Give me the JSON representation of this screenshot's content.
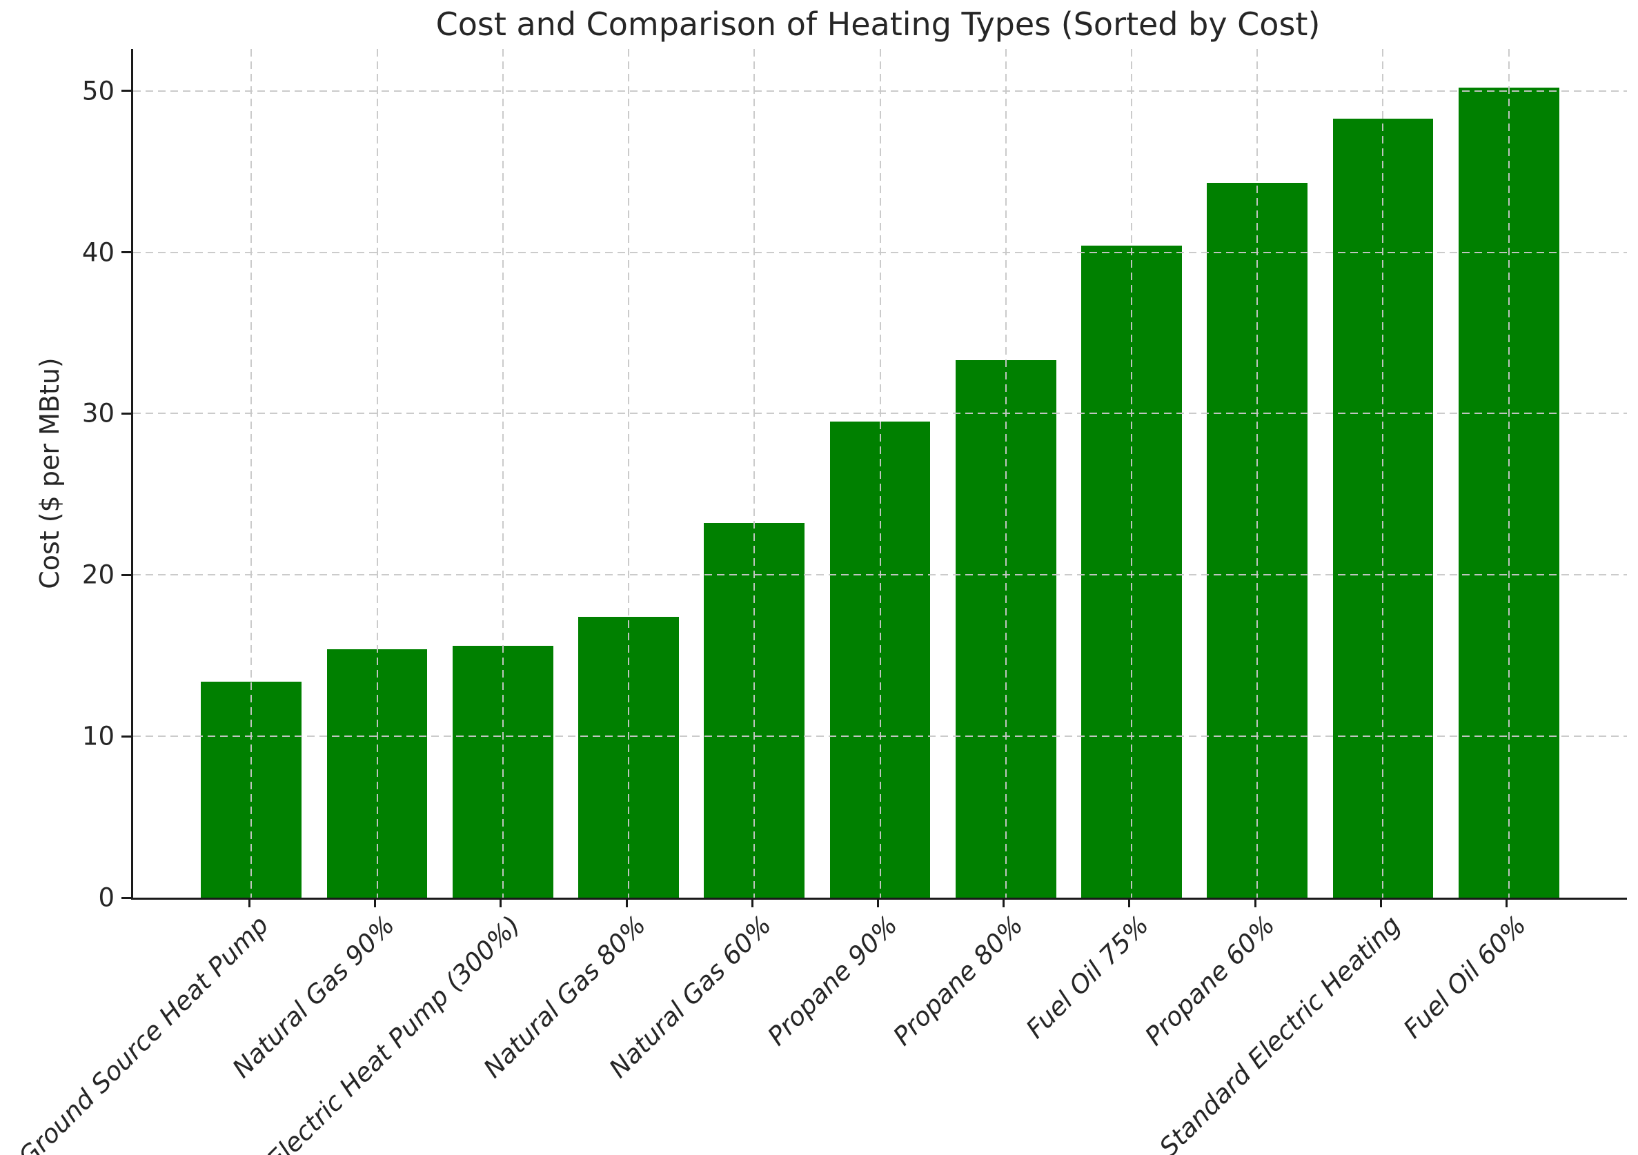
{
  "chart_data": {
    "type": "bar",
    "title": "Cost and Comparison of Heating Types (Sorted by Cost)",
    "xlabel": "",
    "ylabel": "Cost ($ per MBtu)",
    "categories": [
      "Ground Source Heat Pump",
      "Natural Gas 90%",
      "Electric Heat Pump (300%)",
      "Natural Gas 80%",
      "Natural Gas 60%",
      "Propane 90%",
      "Propane 80%",
      "Fuel Oil 75%",
      "Propane 60%",
      "Standard Electric Heating",
      "Fuel Oil 60%"
    ],
    "values": [
      13.4,
      15.4,
      15.6,
      17.4,
      23.2,
      29.5,
      33.3,
      40.4,
      44.3,
      48.3,
      50.2
    ],
    "yticks": [
      0,
      10,
      20,
      30,
      40,
      50
    ],
    "ylim": [
      0,
      52.6
    ],
    "bar_color": "#008000",
    "grid": "dashed",
    "grid_color": "#c8c8c8",
    "grid_on_top": true,
    "legend": "none"
  }
}
